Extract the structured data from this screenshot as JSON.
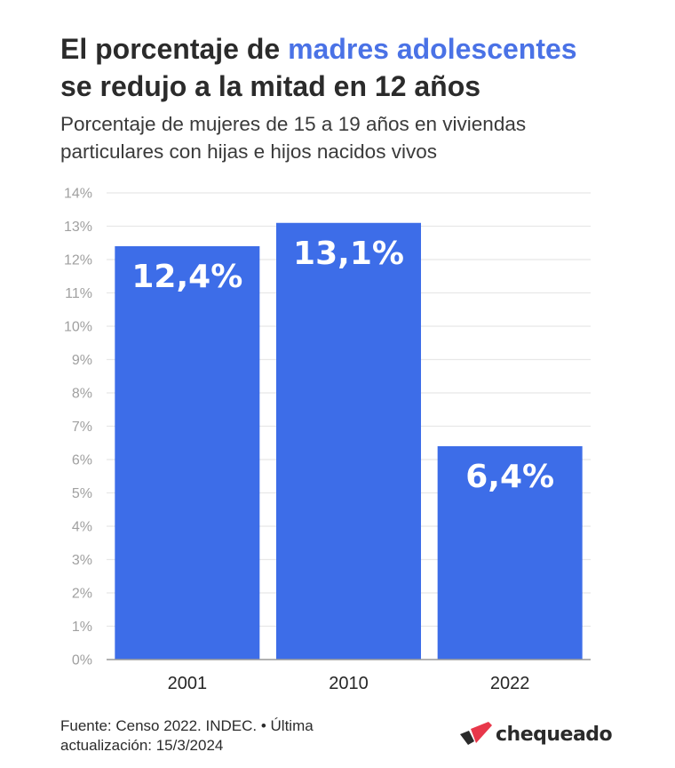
{
  "header": {
    "title_part1": "El porcentaje de ",
    "title_highlight": "madres adolescentes",
    "title_part2": "se redujo a la mitad en 12 años",
    "subtitle": "Porcentaje de mujeres de 15 a 19 años en viviendas particulares con hijas e hijos nacidos vivos"
  },
  "chart_data": {
    "type": "bar",
    "categories": [
      "2001",
      "2010",
      "2022"
    ],
    "values": [
      12.4,
      13.1,
      6.4
    ],
    "value_labels": [
      "12,4%",
      "13,1%",
      "6,4%"
    ],
    "ylim": [
      0,
      14
    ],
    "yticks": [
      0,
      1,
      2,
      3,
      4,
      5,
      6,
      7,
      8,
      9,
      10,
      11,
      12,
      13,
      14
    ],
    "ytick_labels": [
      "0%",
      "1%",
      "2%",
      "3%",
      "4%",
      "5%",
      "6%",
      "7%",
      "8%",
      "9%",
      "10%",
      "11%",
      "12%",
      "13%",
      "14%"
    ],
    "grid": true,
    "bar_color": "#3d6de8",
    "label_color": "#ffffff",
    "grid_color": "#e8e8e8",
    "axis_color": "#9a9a9a"
  },
  "footer": {
    "source": "Fuente: Censo 2022. INDEC. • Última actualización: 15/3/2024",
    "brand": "chequeado",
    "brand_colors": [
      "#e8374a",
      "#2b2b2b"
    ]
  }
}
